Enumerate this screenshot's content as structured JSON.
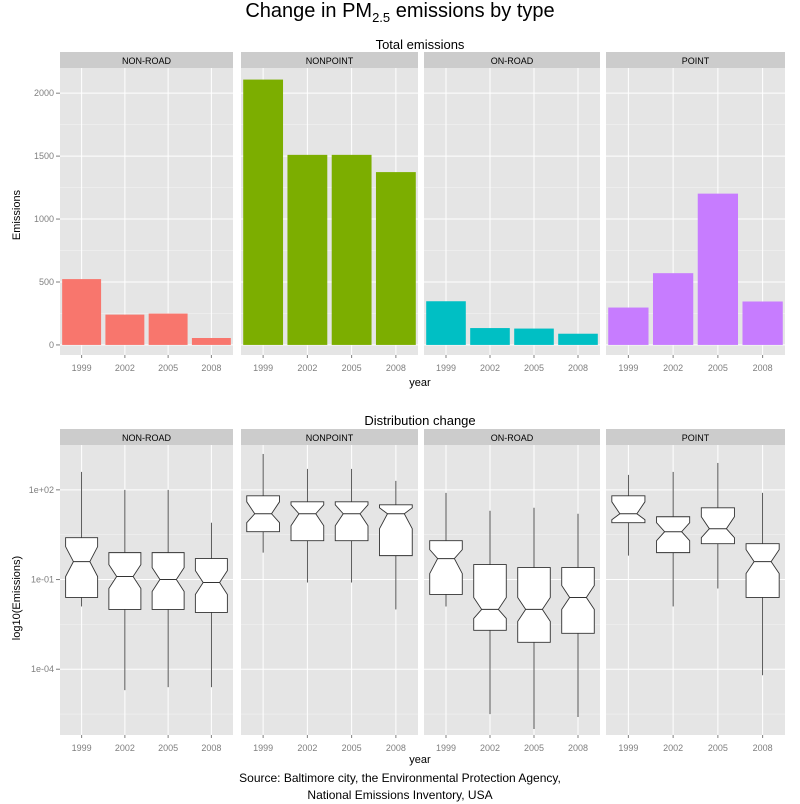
{
  "title": {
    "prefix": "Change in PM",
    "subscript": "2.5",
    "suffix": " emissions by type"
  },
  "caption": {
    "line1": "Source: Baltimore city, the Environmental Protection Agency,",
    "line2": "National Emissions Inventory, USA"
  },
  "chart_data": [
    {
      "type": "bar",
      "title": "Total emissions",
      "xlabel": "year",
      "ylabel": "Emissions",
      "ylim": [
        -80,
        2200
      ],
      "yticks": [
        0,
        500,
        1000,
        1500,
        2000
      ],
      "categories": [
        "1999",
        "2002",
        "2005",
        "2008"
      ],
      "facets": [
        {
          "name": "NON-ROAD",
          "color": "#F8766D",
          "values": [
            523,
            241,
            249,
            55
          ]
        },
        {
          "name": "NONPOINT",
          "color": "#7CAE00",
          "values": [
            2108,
            1510,
            1510,
            1373
          ]
        },
        {
          "name": "ON-ROAD",
          "color": "#00BFC4",
          "values": [
            347,
            134,
            130,
            89
          ]
        },
        {
          "name": "POINT",
          "color": "#C77CFF",
          "values": [
            297,
            570,
            1202,
            345
          ]
        }
      ],
      "grid": true,
      "legend": "none"
    },
    {
      "type": "boxplot",
      "title": "Distribution change",
      "xlabel": "year",
      "ylabel": "log10(Emissions)",
      "yscale": "log10",
      "ylim_log10": [
        -6.2,
        3.5
      ],
      "yticks": [
        {
          "log10": 2,
          "label": "1e+02"
        },
        {
          "log10": -1,
          "label": "1e-01"
        },
        {
          "log10": -4,
          "label": "1e-04"
        }
      ],
      "categories": [
        "1999",
        "2002",
        "2005",
        "2008"
      ],
      "notched": true,
      "facets": [
        {
          "name": "NON-ROAD",
          "boxes": [
            {
              "year": "1999",
              "min": -1.9,
              "q1": -1.6,
              "median": -0.4,
              "q3": 0.4,
              "max": 2.6,
              "notch_lo": -0.9,
              "notch_hi": 0.1
            },
            {
              "year": "2002",
              "min": -4.7,
              "q1": -2.0,
              "median": -0.9,
              "q3": -0.1,
              "max": 2.0,
              "notch_lo": -1.3,
              "notch_hi": -0.5
            },
            {
              "year": "2005",
              "min": -4.6,
              "q1": -2.0,
              "median": -1.0,
              "q3": -0.1,
              "max": 2.0,
              "notch_lo": -1.4,
              "notch_hi": -0.6
            },
            {
              "year": "2008",
              "min": -4.6,
              "q1": -2.1,
              "median": -1.1,
              "q3": -0.3,
              "max": 0.9,
              "notch_lo": -1.5,
              "notch_hi": -0.7
            }
          ]
        },
        {
          "name": "NONPOINT",
          "boxes": [
            {
              "year": "1999",
              "min": -0.1,
              "q1": 0.6,
              "median": 1.2,
              "q3": 1.8,
              "max": 3.2,
              "notch_lo": 0.9,
              "notch_hi": 1.6
            },
            {
              "year": "2002",
              "min": -1.1,
              "q1": 0.3,
              "median": 1.2,
              "q3": 1.6,
              "max": 2.7,
              "notch_lo": 0.8,
              "notch_hi": 1.5
            },
            {
              "year": "2005",
              "min": -1.1,
              "q1": 0.3,
              "median": 1.2,
              "q3": 1.6,
              "max": 2.7,
              "notch_lo": 0.8,
              "notch_hi": 1.5
            },
            {
              "year": "2008",
              "min": -2.0,
              "q1": -0.2,
              "median": 1.2,
              "q3": 1.5,
              "max": 2.3,
              "notch_lo": 0.7,
              "notch_hi": 1.4
            }
          ]
        },
        {
          "name": "ON-ROAD",
          "boxes": [
            {
              "year": "1999",
              "min": -1.9,
              "q1": -1.5,
              "median": -0.3,
              "q3": 0.3,
              "max": 1.9,
              "notch_lo": -0.8,
              "notch_hi": 0.0
            },
            {
              "year": "2002",
              "min": -5.5,
              "q1": -2.7,
              "median": -2.0,
              "q3": -0.5,
              "max": 1.3,
              "notch_lo": -2.3,
              "notch_hi": -1.6
            },
            {
              "year": "2005",
              "min": -6.0,
              "q1": -3.1,
              "median": -2.0,
              "q3": -0.6,
              "max": 1.4,
              "notch_lo": -2.4,
              "notch_hi": -1.6
            },
            {
              "year": "2008",
              "min": -5.6,
              "q1": -2.8,
              "median": -1.6,
              "q3": -0.6,
              "max": 1.2,
              "notch_lo": -2.0,
              "notch_hi": -1.2
            }
          ]
        },
        {
          "name": "POINT",
          "boxes": [
            {
              "year": "1999",
              "min": -0.2,
              "q1": 0.9,
              "median": 1.2,
              "q3": 1.8,
              "max": 2.5,
              "notch_lo": 1.0,
              "notch_hi": 1.6
            },
            {
              "year": "2002",
              "min": -1.9,
              "q1": -0.1,
              "median": 0.6,
              "q3": 1.1,
              "max": 2.6,
              "notch_lo": 0.3,
              "notch_hi": 0.9
            },
            {
              "year": "2005",
              "min": -1.3,
              "q1": 0.2,
              "median": 0.7,
              "q3": 1.4,
              "max": 2.9,
              "notch_lo": 0.4,
              "notch_hi": 1.1
            },
            {
              "year": "2008",
              "min": -4.2,
              "q1": -1.6,
              "median": -0.4,
              "q3": 0.2,
              "max": 1.9,
              "notch_lo": -0.8,
              "notch_hi": 0.0
            }
          ]
        }
      ],
      "grid": true,
      "legend": "none"
    }
  ]
}
